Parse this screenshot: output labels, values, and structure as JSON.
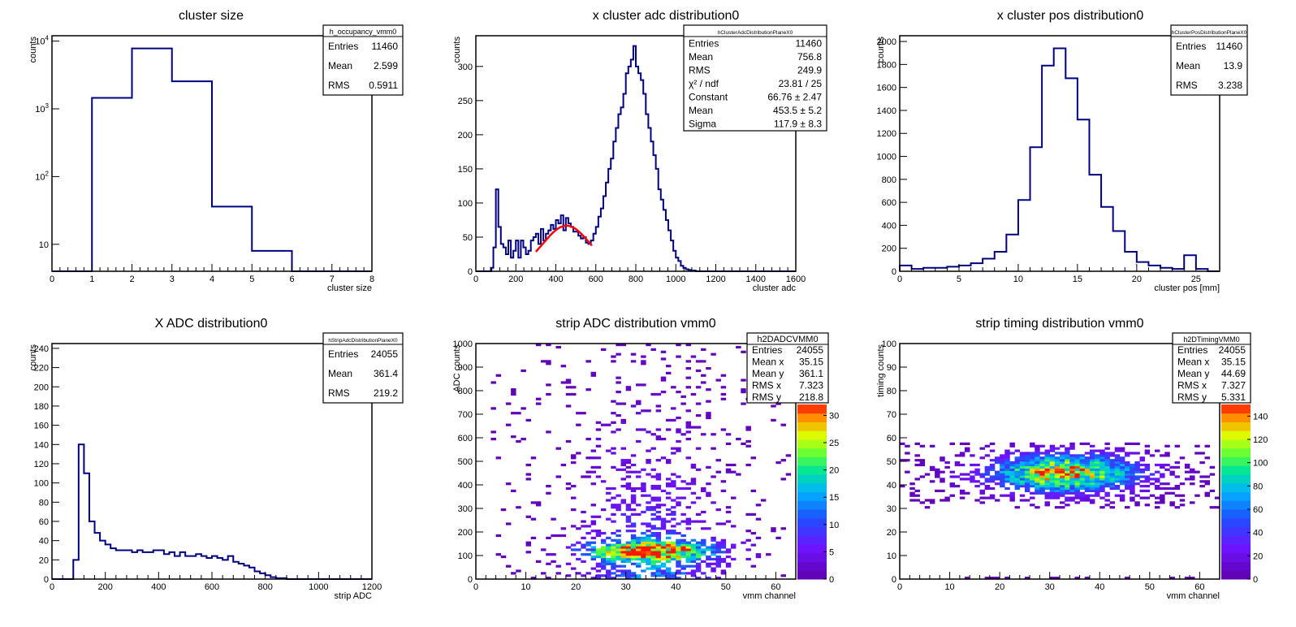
{
  "colors": {
    "hist_line": "#000080",
    "fit_line": "#ff0000",
    "frame": "#000000"
  },
  "chart_data": [
    {
      "id": "p0",
      "type": "histogram",
      "title": "cluster size",
      "xlabel": "cluster size",
      "ylabel": "counts",
      "xlim": [
        0,
        8
      ],
      "ylim": [
        4,
        12000
      ],
      "log_y": true,
      "xticks": [
        0,
        1,
        2,
        3,
        4,
        5,
        6,
        7,
        8
      ],
      "yticks": [
        {
          "v": 10,
          "base": "10",
          "exp": ""
        },
        {
          "v": 100,
          "base": "10",
          "exp": "2"
        },
        {
          "v": 1000,
          "base": "10",
          "exp": "3"
        },
        {
          "v": 10000,
          "base": "10",
          "exp": "4"
        }
      ],
      "bin_edges": [
        0,
        1,
        2,
        3,
        4,
        5,
        6,
        7,
        8
      ],
      "values": [
        4,
        1450,
        7800,
        2550,
        36,
        8,
        4,
        4
      ],
      "stats": {
        "name": "h_occupancy_vmm0",
        "rows": [
          {
            "k": "Entries",
            "v": "11460"
          },
          {
            "k": "Mean",
            "v": "2.599"
          },
          {
            "k": "RMS",
            "v": "0.5911"
          }
        ]
      }
    },
    {
      "id": "p1",
      "type": "histogram",
      "title": "x cluster adc distribution0",
      "xlabel": "cluster adc",
      "ylabel": "counts",
      "xlim": [
        0,
        1600
      ],
      "ylim": [
        0,
        345
      ],
      "xticks": [
        0,
        200,
        400,
        600,
        800,
        1000,
        1200,
        1400,
        1600
      ],
      "yticks": [
        0,
        50,
        100,
        150,
        200,
        250,
        300
      ],
      "bin_start": 0,
      "bin_width": 12.5,
      "values": [
        0,
        0,
        0,
        0,
        0,
        0,
        5,
        35,
        120,
        65,
        40,
        35,
        25,
        45,
        20,
        30,
        45,
        20,
        45,
        35,
        25,
        30,
        45,
        50,
        55,
        40,
        62,
        45,
        55,
        60,
        68,
        62,
        75,
        70,
        82,
        60,
        78,
        70,
        65,
        58,
        58,
        52,
        48,
        50,
        42,
        40,
        45,
        55,
        65,
        80,
        92,
        110,
        130,
        150,
        165,
        190,
        210,
        230,
        240,
        260,
        290,
        300,
        310,
        330,
        300,
        290,
        280,
        260,
        230,
        210,
        190,
        170,
        150,
        120,
        105,
        90,
        75,
        60,
        45,
        30,
        20,
        15,
        8,
        5,
        3,
        2,
        1,
        1,
        0,
        0,
        0,
        0,
        0,
        0,
        0,
        0,
        0,
        0,
        0,
        0,
        0,
        0,
        0,
        0,
        0,
        0,
        0,
        0,
        0,
        0,
        0,
        0,
        0,
        0,
        0,
        0,
        0,
        0,
        0,
        0,
        0,
        0,
        0,
        0,
        0,
        0,
        0,
        0
      ],
      "fit": {
        "constant": 66.76,
        "mean": 453.5,
        "sigma": 117.9,
        "range": [
          300,
          580
        ]
      },
      "stats": {
        "name": "hClusterAdcDistributionPlaneX0",
        "rows": [
          {
            "k": "Entries",
            "v": "11460"
          },
          {
            "k": "Mean",
            "v": "756.8"
          },
          {
            "k": "RMS",
            "v": "249.9"
          },
          {
            "k": "χ² / ndf",
            "v": "23.81 / 25"
          },
          {
            "k": "Constant",
            "v": "66.76 ± 2.47"
          },
          {
            "k": "Mean",
            "v": "453.5 ± 5.2"
          },
          {
            "k": "Sigma",
            "v": "117.9 ± 8.3"
          }
        ]
      }
    },
    {
      "id": "p2",
      "type": "histogram",
      "title": "x cluster pos distribution0",
      "xlabel": "cluster pos [mm]",
      "ylabel": "counts",
      "xlim": [
        0,
        27
      ],
      "ylim": [
        0,
        2050
      ],
      "xticks": [
        0,
        5,
        10,
        15,
        20,
        25
      ],
      "yticks": [
        0,
        200,
        400,
        600,
        800,
        1000,
        1200,
        1400,
        1600,
        1800,
        2000
      ],
      "bin_start": 0,
      "bin_width": 1,
      "values": [
        50,
        20,
        30,
        30,
        40,
        50,
        70,
        110,
        170,
        320,
        620,
        1080,
        1790,
        1940,
        1680,
        1320,
        840,
        560,
        350,
        170,
        80,
        50,
        30,
        20,
        140,
        20,
        0
      ],
      "stats": {
        "name": "hClusterPosDistributionPlaneX0",
        "rows": [
          {
            "k": "Entries",
            "v": "11460"
          },
          {
            "k": "Mean",
            "v": "13.9"
          },
          {
            "k": "RMS",
            "v": "3.238"
          }
        ]
      }
    },
    {
      "id": "p3",
      "type": "histogram",
      "title": "X ADC distribution0",
      "xlabel": "strip ADC",
      "ylabel": "counts",
      "xlim": [
        0,
        1200
      ],
      "ylim": [
        0,
        245
      ],
      "xticks": [
        0,
        200,
        400,
        600,
        800,
        1000,
        1200
      ],
      "yticks": [
        0,
        20,
        40,
        60,
        80,
        100,
        120,
        140,
        160,
        180,
        200,
        220,
        240
      ],
      "bin_start": 0,
      "bin_width": 20,
      "values": [
        0,
        0,
        0,
        0,
        20,
        140,
        110,
        60,
        48,
        40,
        36,
        32,
        30,
        30,
        30,
        28,
        30,
        28,
        28,
        30,
        30,
        26,
        28,
        24,
        28,
        24,
        24,
        26,
        24,
        22,
        24,
        22,
        20,
        24,
        18,
        16,
        14,
        12,
        8,
        6,
        4,
        2,
        1,
        1,
        0,
        0,
        0,
        0,
        0,
        0,
        0,
        0,
        0,
        0,
        0,
        0,
        0,
        0,
        0,
        0
      ],
      "stats": {
        "name": "hStripAdcDistributionPlaneX0",
        "rows": [
          {
            "k": "Entries",
            "v": "24055"
          },
          {
            "k": "Mean",
            "v": "361.4"
          },
          {
            "k": "RMS",
            "v": "219.2"
          }
        ]
      }
    },
    {
      "id": "p4",
      "type": "heatmap",
      "title": "strip ADC distribution vmm0",
      "xlabel": "vmm channel",
      "ylabel": "ADC counts",
      "xlim": [
        0,
        64
      ],
      "ylim": [
        0,
        1000
      ],
      "xticks": [
        0,
        10,
        20,
        30,
        40,
        50,
        60
      ],
      "yticks": [
        0,
        100,
        200,
        300,
        400,
        500,
        600,
        700,
        800,
        900,
        1000
      ],
      "zlim": [
        0,
        32
      ],
      "zticks": [
        0,
        5,
        10,
        15,
        20,
        25,
        30
      ],
      "stats": {
        "name": "h2DADCVMM0",
        "rows": [
          {
            "k": "Entries",
            "v": "24055"
          },
          {
            "k": "Mean x",
            "v": "35.15"
          },
          {
            "k": "Mean y",
            "v": "361.1"
          },
          {
            "k": "RMS x",
            "v": "7.323"
          },
          {
            "k": "RMS y",
            "v": "218.8"
          }
        ]
      }
    },
    {
      "id": "p5",
      "type": "heatmap",
      "title": "strip timing distribution vmm0",
      "xlabel": "vmm channel",
      "ylabel": "timing counts",
      "xlim": [
        0,
        64
      ],
      "ylim": [
        0,
        100
      ],
      "xticks": [
        0,
        10,
        20,
        30,
        40,
        50,
        60
      ],
      "yticks": [
        0,
        10,
        20,
        30,
        40,
        50,
        60,
        70,
        80,
        90,
        100
      ],
      "zlim": [
        0,
        150
      ],
      "zticks": [
        0,
        20,
        40,
        60,
        80,
        100,
        120,
        140
      ],
      "stats": {
        "name": "h2DTimingVMM0",
        "rows": [
          {
            "k": "Entries",
            "v": "24055"
          },
          {
            "k": "Mean x",
            "v": "35.15"
          },
          {
            "k": "Mean y",
            "v": "44.69"
          },
          {
            "k": "RMS x",
            "v": "7.327"
          },
          {
            "k": "RMS y",
            "v": "5.331"
          }
        ]
      }
    }
  ]
}
